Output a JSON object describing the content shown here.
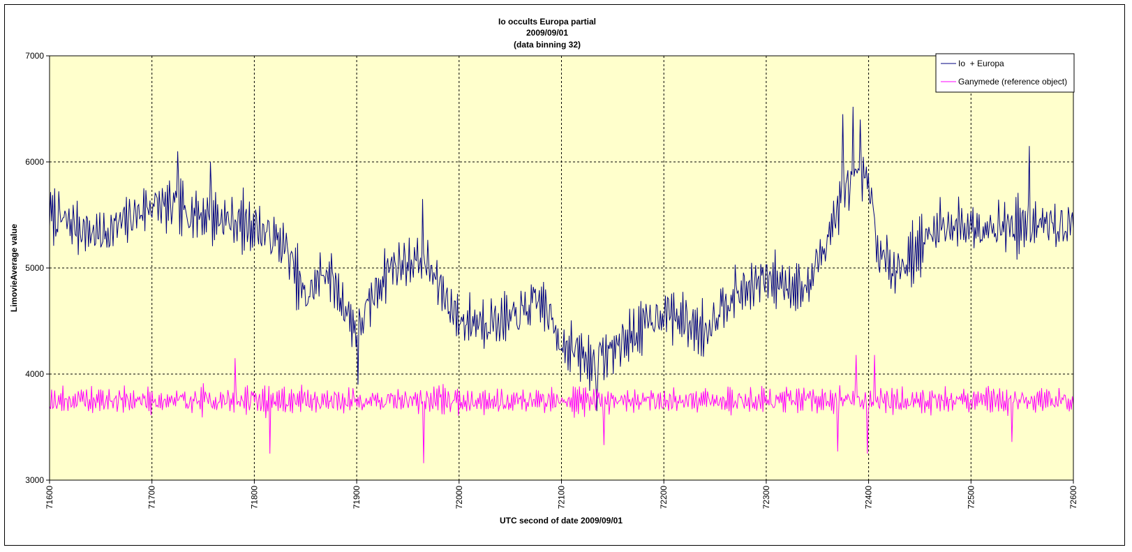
{
  "chart_data": {
    "type": "line",
    "title_lines": [
      "Io occults Europa partial",
      "2009/09/01",
      "(data binning 32)"
    ],
    "xlabel": "UTC second  of date 2009/09/01",
    "ylabel": "LimovieAverage value",
    "xlim": [
      71600,
      72600
    ],
    "ylim": [
      3000,
      7000
    ],
    "x_ticks": [
      71600,
      71700,
      71800,
      71900,
      72000,
      72100,
      72200,
      72300,
      72400,
      72500,
      72600
    ],
    "x_tick_labels": [
      "71600",
      "71700",
      "71800",
      "71900",
      "72000",
      "72100",
      "72200",
      "72300",
      "72400",
      "72500",
      "72600"
    ],
    "y_ticks": [
      3000,
      4000,
      5000,
      6000,
      7000
    ],
    "y_tick_labels": [
      "3000",
      "4000",
      "5000",
      "6000",
      "7000"
    ],
    "grid": "dashed, both axes",
    "plot_background": "#ffffcc",
    "legend_position": "top-right",
    "sampling": {
      "x_start": 71600,
      "x_end": 72600,
      "points": 1000
    },
    "series": [
      {
        "name": "Io  + Europa",
        "color": "#000080",
        "profile": [
          [
            71600,
            5500
          ],
          [
            71650,
            5300
          ],
          [
            71700,
            5600
          ],
          [
            71750,
            5500
          ],
          [
            71800,
            5400
          ],
          [
            71830,
            5200
          ],
          [
            71850,
            4700
          ],
          [
            71870,
            5000
          ],
          [
            71900,
            4400
          ],
          [
            71930,
            5000
          ],
          [
            71965,
            5100
          ],
          [
            72000,
            4500
          ],
          [
            72050,
            4500
          ],
          [
            72080,
            4700
          ],
          [
            72100,
            4300
          ],
          [
            72130,
            4100
          ],
          [
            72160,
            4300
          ],
          [
            72200,
            4600
          ],
          [
            72240,
            4400
          ],
          [
            72260,
            4700
          ],
          [
            72300,
            4900
          ],
          [
            72340,
            4800
          ],
          [
            72360,
            5300
          ],
          [
            72380,
            5800
          ],
          [
            72400,
            5800
          ],
          [
            72410,
            5100
          ],
          [
            72430,
            5000
          ],
          [
            72470,
            5400
          ],
          [
            72500,
            5400
          ],
          [
            72600,
            5400
          ]
        ],
        "noise_amplitude": 300,
        "noise_seed": 7,
        "spikes": [
          {
            "x": 71725,
            "y": 6100
          },
          {
            "x": 71757,
            "y": 6000
          },
          {
            "x": 71901,
            "y": 3900
          },
          {
            "x": 71964,
            "y": 5650
          },
          {
            "x": 72135,
            "y": 3650
          },
          {
            "x": 72375,
            "y": 6450
          },
          {
            "x": 72385,
            "y": 6520
          },
          {
            "x": 72392,
            "y": 6400
          },
          {
            "x": 72557,
            "y": 6150
          }
        ]
      },
      {
        "name": "Ganymede (reference object)",
        "color": "#ff00ff",
        "profile": [
          [
            71600,
            3750
          ],
          [
            72600,
            3750
          ]
        ],
        "noise_amplitude": 150,
        "noise_seed": 19,
        "spikes": [
          {
            "x": 71781,
            "y": 4150
          },
          {
            "x": 71815,
            "y": 3250
          },
          {
            "x": 71965,
            "y": 3160
          },
          {
            "x": 72142,
            "y": 3330
          },
          {
            "x": 72370,
            "y": 3270
          },
          {
            "x": 72388,
            "y": 4180
          },
          {
            "x": 72399,
            "y": 3250
          },
          {
            "x": 72406,
            "y": 4180
          },
          {
            "x": 72540,
            "y": 3360
          }
        ]
      }
    ]
  }
}
